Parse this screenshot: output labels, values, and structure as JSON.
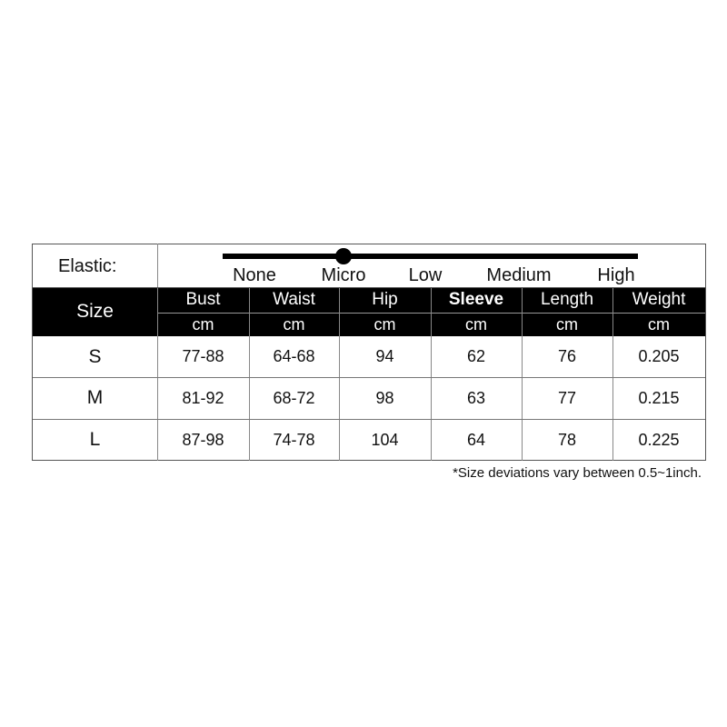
{
  "elastic": {
    "label": "Elastic:",
    "levels": [
      "None",
      "Micro",
      "Low",
      "Medium",
      "High"
    ],
    "selected": "Micro"
  },
  "header": {
    "size_label": "Size",
    "columns": [
      {
        "name": "Bust",
        "unit": "cm"
      },
      {
        "name": "Waist",
        "unit": "cm"
      },
      {
        "name": "Hip",
        "unit": "cm"
      },
      {
        "name": "Sleeve",
        "unit": "cm"
      },
      {
        "name": "Length",
        "unit": "cm"
      },
      {
        "name": "Weight",
        "unit": "cm"
      }
    ]
  },
  "rows": [
    {
      "size": "S",
      "values": [
        "77-88",
        "64-68",
        "94",
        "62",
        "76",
        "0.205"
      ]
    },
    {
      "size": "M",
      "values": [
        "81-92",
        "68-72",
        "98",
        "63",
        "77",
        "0.215"
      ]
    },
    {
      "size": "L",
      "values": [
        "87-98",
        "74-78",
        "104",
        "64",
        "78",
        "0.225"
      ]
    }
  ],
  "note": "*Size deviations vary between 0.5~1inch."
}
